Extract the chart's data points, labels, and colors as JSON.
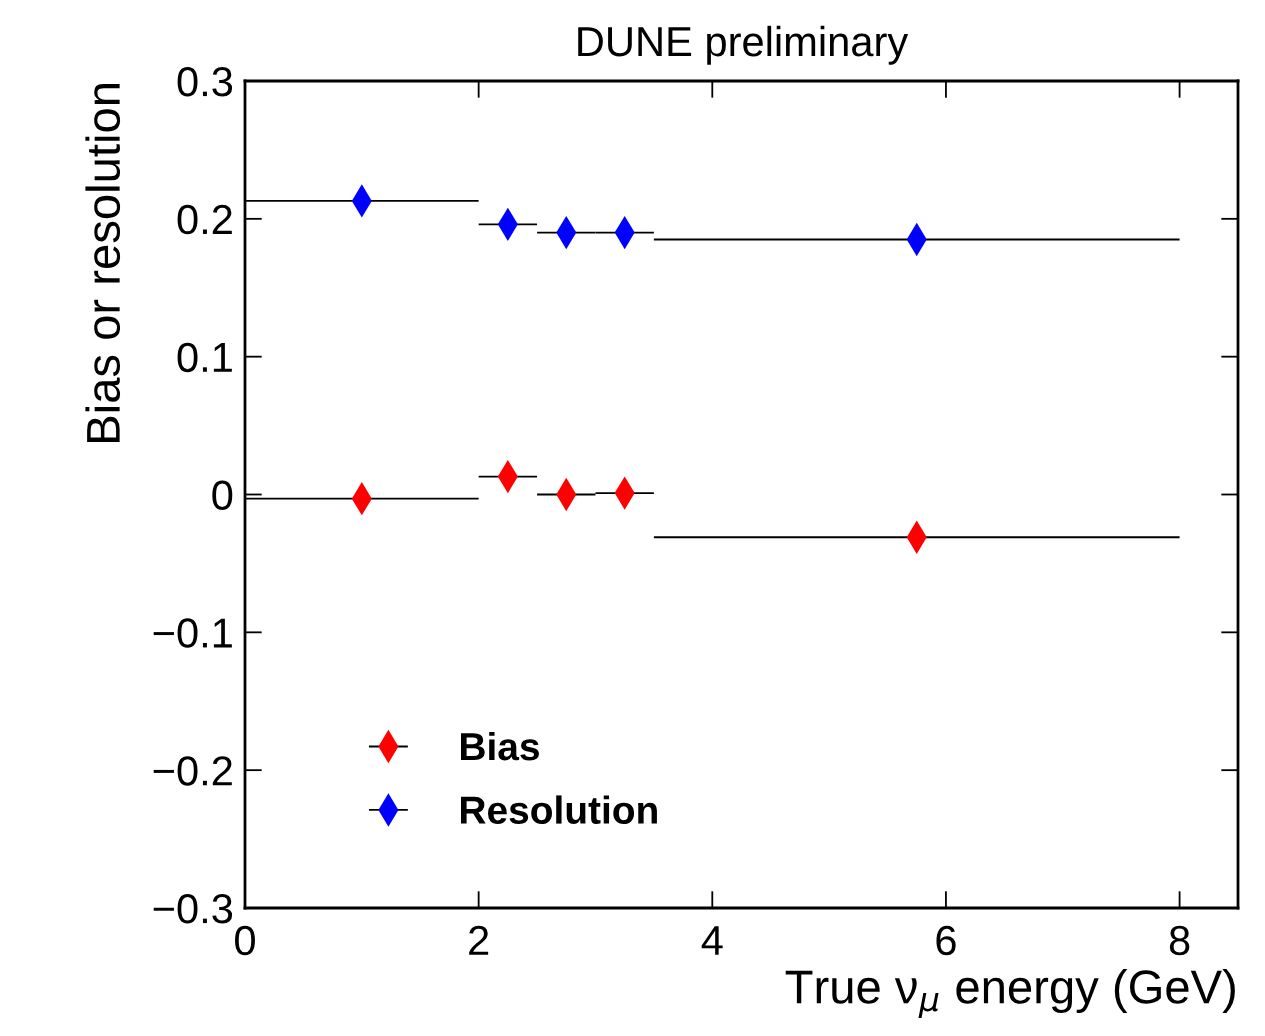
{
  "chart_data": {
    "type": "scatter",
    "title": "DUNE preliminary",
    "xlabel": "True ν$_{μ}$ energy (GeV)",
    "ylabel": "Bias or resolution",
    "x": [
      1,
      2.25,
      2.75,
      3.25,
      5.75
    ],
    "series": [
      {
        "name": "Bias",
        "color": "#ff0000",
        "values": [
          -0.003,
          0.013,
          0.0,
          0.001,
          -0.031
        ],
        "xerrors": [
          1,
          0.25,
          0.25,
          0.25,
          2.25
        ]
      },
      {
        "name": "Resolution",
        "color": "#0000ff",
        "values": [
          0.213,
          0.196,
          0.19,
          0.19,
          0.185
        ],
        "xerrors": [
          1,
          0.25,
          0.25,
          0.25,
          2.25
        ]
      }
    ],
    "xlim": [
      0,
      8.5
    ],
    "xticks": [
      0,
      2,
      4,
      6,
      8
    ],
    "ylim": [
      -0.3,
      0.3
    ],
    "yticks": [
      {
        "value": -0.3,
        "label": "−0.3"
      },
      {
        "value": -0.2,
        "label": "−0.2"
      },
      {
        "value": -0.1,
        "label": "−0.1"
      },
      0,
      0.1,
      0.2,
      0.3
    ],
    "marker": "diamond",
    "legend": "bottom left",
    "grid": false
  }
}
